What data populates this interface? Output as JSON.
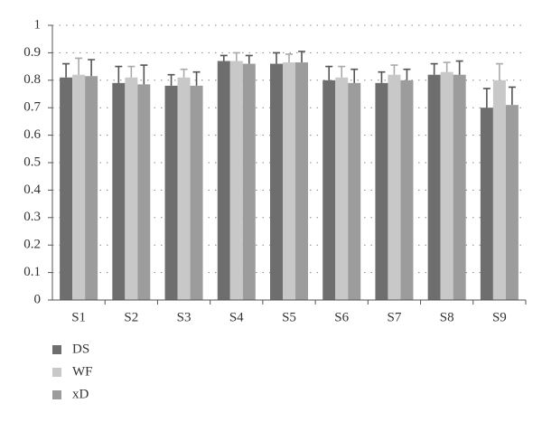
{
  "chart_data": {
    "type": "bar",
    "categories": [
      "S1",
      "S2",
      "S3",
      "S4",
      "S5",
      "S6",
      "S7",
      "S8",
      "S9"
    ],
    "series": [
      {
        "name": "DS",
        "color": "#6e6e6e",
        "values": [
          0.81,
          0.79,
          0.78,
          0.87,
          0.86,
          0.8,
          0.79,
          0.82,
          0.7
        ],
        "errors": [
          0.05,
          0.06,
          0.04,
          0.02,
          0.04,
          0.05,
          0.04,
          0.04,
          0.07
        ]
      },
      {
        "name": "WF",
        "color": "#c8c8c8",
        "values": [
          0.82,
          0.81,
          0.81,
          0.87,
          0.865,
          0.81,
          0.82,
          0.83,
          0.8
        ],
        "errors": [
          0.06,
          0.04,
          0.03,
          0.03,
          0.03,
          0.04,
          0.035,
          0.035,
          0.06
        ]
      },
      {
        "name": "xD",
        "color": "#9c9c9c",
        "values": [
          0.815,
          0.785,
          0.78,
          0.86,
          0.865,
          0.79,
          0.8,
          0.82,
          0.71
        ],
        "errors": [
          0.06,
          0.07,
          0.05,
          0.03,
          0.04,
          0.05,
          0.04,
          0.05,
          0.065
        ]
      }
    ],
    "ylim": [
      0,
      1
    ],
    "yticks": [
      0,
      0.1,
      0.2,
      0.3,
      0.4,
      0.5,
      0.6,
      0.7,
      0.8,
      0.9,
      1
    ],
    "grid": true,
    "legend": "bottom-left"
  }
}
